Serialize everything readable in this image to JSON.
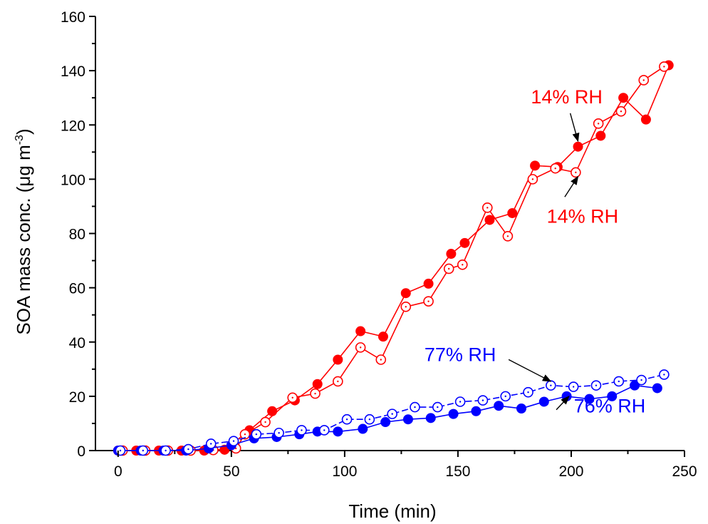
{
  "chart_data": {
    "type": "scatter",
    "xlabel": "Time (min)",
    "ylabel_main": "SOA mass conc. (μg m",
    "ylabel_sup": "-3",
    "ylabel_end": ")",
    "xlim": [
      -10,
      250
    ],
    "ylim": [
      0,
      160
    ],
    "xticks": [
      0,
      50,
      100,
      150,
      200,
      250
    ],
    "yticks": [
      0,
      20,
      40,
      60,
      80,
      100,
      120,
      140,
      160
    ],
    "grid": false,
    "series": [
      {
        "color": "#ff0000",
        "marker": "filled-circle",
        "line": "solid",
        "points": [
          [
            0,
            0
          ],
          [
            8,
            0
          ],
          [
            18,
            0
          ],
          [
            28,
            0
          ],
          [
            38,
            0
          ],
          [
            47,
            0.3
          ],
          [
            58,
            7.5
          ],
          [
            68,
            14.5
          ],
          [
            78,
            18.5
          ],
          [
            88,
            24.5
          ],
          [
            97,
            33.5
          ],
          [
            107,
            44
          ],
          [
            117,
            42
          ],
          [
            127,
            58
          ],
          [
            137,
            61.5
          ],
          [
            147,
            72.5
          ],
          [
            153,
            76.5
          ],
          [
            164,
            85
          ],
          [
            174,
            87.5
          ],
          [
            184,
            105
          ],
          [
            194,
            104.5
          ],
          [
            203,
            112
          ],
          [
            213,
            116
          ],
          [
            223,
            130
          ],
          [
            233,
            122
          ],
          [
            243,
            142
          ]
        ]
      },
      {
        "color": "#ff0000",
        "marker": "open-circle",
        "line": "solid",
        "points": [
          [
            2,
            0
          ],
          [
            12,
            0
          ],
          [
            22,
            0
          ],
          [
            32,
            0
          ],
          [
            42,
            0.2
          ],
          [
            52,
            0.8
          ],
          [
            56,
            6
          ],
          [
            65,
            10.5
          ],
          [
            77,
            19.5
          ],
          [
            87,
            21
          ],
          [
            97,
            25.5
          ],
          [
            107,
            38
          ],
          [
            116,
            33.5
          ],
          [
            127,
            53
          ],
          [
            137,
            55
          ],
          [
            146,
            67
          ],
          [
            152,
            68.5
          ],
          [
            163,
            89.5
          ],
          [
            172,
            79
          ],
          [
            183,
            100
          ],
          [
            193,
            104
          ],
          [
            202,
            102.5
          ],
          [
            212,
            120.5
          ],
          [
            222,
            125
          ],
          [
            232,
            136.5
          ],
          [
            241,
            141.5
          ]
        ]
      },
      {
        "color": "#0000ff",
        "marker": "filled-circle",
        "line": "solid",
        "points": [
          [
            0,
            0
          ],
          [
            10,
            0
          ],
          [
            20,
            0
          ],
          [
            30,
            0
          ],
          [
            40,
            0.8
          ],
          [
            50,
            2
          ],
          [
            60,
            4.5
          ],
          [
            70,
            5
          ],
          [
            80,
            6
          ],
          [
            88,
            7
          ],
          [
            97,
            7
          ],
          [
            108,
            8
          ],
          [
            118,
            10.5
          ],
          [
            128,
            11.5
          ],
          [
            138,
            12
          ],
          [
            148,
            13.5
          ],
          [
            158,
            14.5
          ],
          [
            168,
            16.5
          ],
          [
            178,
            15.5
          ],
          [
            188,
            18
          ],
          [
            198,
            20
          ],
          [
            208,
            19
          ],
          [
            218,
            20
          ],
          [
            228,
            24
          ],
          [
            238,
            23
          ]
        ]
      },
      {
        "color": "#0000ff",
        "marker": "open-circle",
        "line": "dashed",
        "points": [
          [
            1,
            0
          ],
          [
            11,
            0
          ],
          [
            21,
            0
          ],
          [
            31,
            0.5
          ],
          [
            41,
            2.5
          ],
          [
            51,
            3.5
          ],
          [
            61,
            6
          ],
          [
            71,
            6.5
          ],
          [
            81,
            7.5
          ],
          [
            91,
            7.5
          ],
          [
            101,
            11.5
          ],
          [
            111,
            11.5
          ],
          [
            121,
            13.5
          ],
          [
            131,
            16
          ],
          [
            141,
            16
          ],
          [
            151,
            18
          ],
          [
            161,
            18.5
          ],
          [
            171,
            20
          ],
          [
            181,
            21.5
          ],
          [
            191,
            24
          ],
          [
            201,
            23.5
          ],
          [
            211,
            24
          ],
          [
            221,
            25.5
          ],
          [
            231,
            26
          ],
          [
            241,
            28
          ]
        ]
      }
    ],
    "annotations": [
      {
        "text": "14% RH",
        "color": "#ff0000",
        "anchor": [
          198,
          128
        ],
        "arrow_to": [
          203,
          114
        ]
      },
      {
        "text": "14% RH",
        "color": "#ff0000",
        "anchor": [
          205,
          84
        ],
        "arrow_to": [
          203,
          101
        ]
      },
      {
        "text": "77% RH",
        "color": "#0000ff",
        "anchor": [
          151,
          33
        ],
        "arrow_to": [
          191,
          25.5
        ]
      },
      {
        "text": "76% RH",
        "color": "#0000ff",
        "anchor": [
          217,
          14
        ],
        "arrow_to": [
          199,
          20
        ]
      }
    ]
  }
}
